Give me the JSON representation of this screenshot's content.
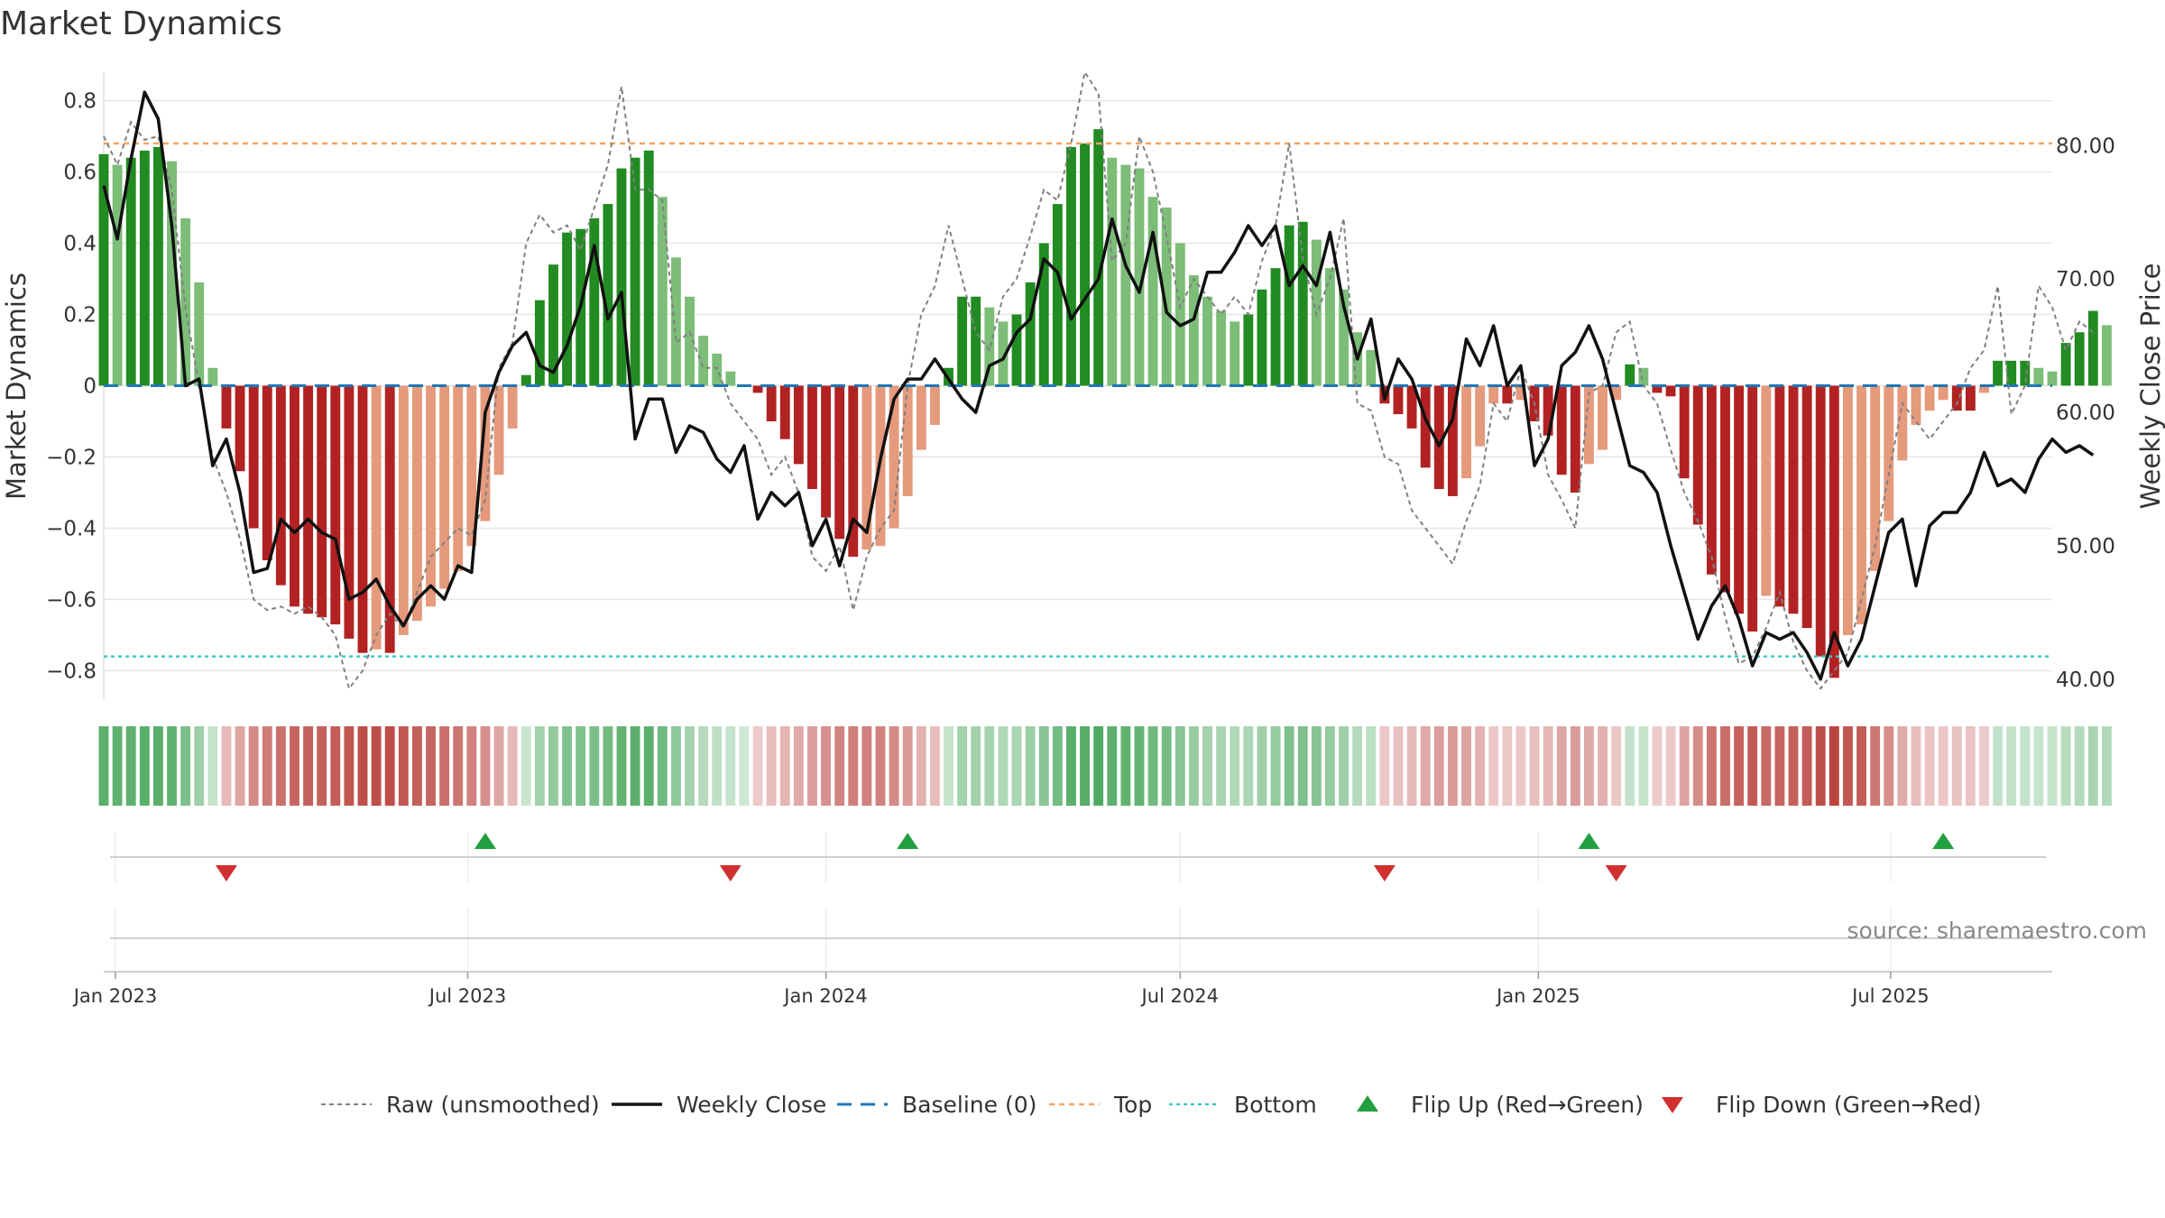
{
  "title": "Market Dynamics",
  "source": "source: sharemaestro.com",
  "colors": {
    "strong_green": "#228B22",
    "light_green": "#7CBD78",
    "strong_red": "#B22222",
    "light_red": "#E59A7C",
    "close_line": "#111111",
    "raw_line": "#808080",
    "baseline": "#1f77b4",
    "top": "#F4A460",
    "bottom": "#40C8C8",
    "flip_up": "#22A040",
    "flip_down": "#D03030",
    "grid": "#e6e6e6"
  },
  "chart_data": {
    "type": "bar",
    "title": "Market Dynamics",
    "ylabel": "Market Dynamics",
    "y2label": "Weekly Close Price",
    "ylim": [
      -0.88,
      0.88
    ],
    "y2lim": [
      38.5,
      85.5
    ],
    "yticks": [
      "0.8",
      "0.6",
      "0.4",
      "0.2",
      "0",
      "−0.2",
      "−0.4",
      "−0.6",
      "−0.8"
    ],
    "y2ticks": [
      "80.00",
      "70.00",
      "60.00",
      "50.00",
      "40.00"
    ],
    "xticks": [
      "Jan 2023",
      "Jul 2023",
      "Jan 2024",
      "Jul 2024",
      "Jan 2025",
      "Jul 2025"
    ],
    "x_start": "2022-12-26",
    "x_end": "2025-09-22",
    "week_start": "2022-12-26",
    "top_level": 0.68,
    "bottom_level": -0.76,
    "baseline_level": 0,
    "legend_position": "bottom",
    "legend": [
      "Raw (unsmoothed)",
      "Weekly Close",
      "Baseline (0)",
      "Top",
      "Bottom",
      "Flip Up (Red→Green)",
      "Flip Down (Green→Red)"
    ],
    "flip_up_dates": [
      "2023-07-10",
      "2024-02-12",
      "2025-01-27",
      "2025-07-28"
    ],
    "flip_down_dates": [
      "2023-02-27",
      "2023-11-13",
      "2024-10-14",
      "2025-02-10"
    ],
    "momentum": [
      0.65,
      0.62,
      0.64,
      0.66,
      0.67,
      0.63,
      0.47,
      0.29,
      0.05,
      -0.12,
      -0.24,
      -0.4,
      -0.49,
      -0.56,
      -0.62,
      -0.64,
      -0.65,
      -0.67,
      -0.71,
      -0.75,
      -0.74,
      -0.75,
      -0.7,
      -0.66,
      -0.62,
      -0.57,
      -0.52,
      -0.45,
      -0.38,
      -0.25,
      -0.12,
      0.03,
      0.24,
      0.34,
      0.43,
      0.44,
      0.47,
      0.51,
      0.61,
      0.64,
      0.66,
      0.53,
      0.36,
      0.25,
      0.14,
      0.09,
      0.04,
      0,
      -0.02,
      -0.1,
      -0.15,
      -0.22,
      -0.29,
      -0.37,
      -0.43,
      -0.48,
      -0.46,
      -0.45,
      -0.4,
      -0.31,
      -0.18,
      -0.11,
      0.05,
      0.25,
      0.25,
      0.22,
      0.18,
      0.2,
      0.29,
      0.4,
      0.51,
      0.67,
      0.68,
      0.72,
      0.64,
      0.62,
      0.61,
      0.53,
      0.5,
      0.4,
      0.31,
      0.25,
      0.21,
      0.18,
      0.2,
      0.27,
      0.33,
      0.45,
      0.46,
      0.41,
      0.33,
      0.27,
      0.15,
      0.1,
      -0.05,
      -0.08,
      -0.12,
      -0.23,
      -0.29,
      -0.31,
      -0.26,
      -0.17,
      -0.05,
      -0.05,
      -0.04,
      -0.1,
      -0.14,
      -0.25,
      -0.3,
      -0.22,
      -0.18,
      -0.04,
      0.06,
      0.05,
      -0.02,
      -0.03,
      -0.26,
      -0.39,
      -0.53,
      -0.58,
      -0.64,
      -0.69,
      -0.59,
      -0.62,
      -0.64,
      -0.68,
      -0.76,
      -0.82,
      -0.7,
      -0.67,
      -0.52,
      -0.38,
      -0.21,
      -0.11,
      -0.07,
      -0.04,
      -0.07,
      -0.07,
      -0.02,
      0.07,
      0.07,
      0.07,
      0.05,
      0.04,
      0.12,
      0.15,
      0.21,
      0.17
    ],
    "raw": [
      0.7,
      0.62,
      0.74,
      0.69,
      0.7,
      0.55,
      0.22,
      0.0,
      -0.2,
      -0.3,
      -0.43,
      -0.6,
      -0.63,
      -0.62,
      -0.64,
      -0.62,
      -0.65,
      -0.7,
      -0.85,
      -0.8,
      -0.7,
      -0.64,
      -0.68,
      -0.58,
      -0.48,
      -0.44,
      -0.4,
      -0.42,
      -0.32,
      0.05,
      0.12,
      0.4,
      0.48,
      0.43,
      0.45,
      0.38,
      0.5,
      0.62,
      0.84,
      0.55,
      0.55,
      0.52,
      0.12,
      0.15,
      0.05,
      0.05,
      -0.05,
      -0.1,
      -0.15,
      -0.25,
      -0.2,
      -0.3,
      -0.48,
      -0.52,
      -0.45,
      -0.63,
      -0.48,
      -0.4,
      -0.35,
      0.0,
      0.2,
      0.28,
      0.45,
      0.3,
      0.15,
      0.1,
      0.25,
      0.3,
      0.42,
      0.55,
      0.52,
      0.68,
      0.88,
      0.82,
      0.35,
      0.4,
      0.7,
      0.6,
      0.42,
      0.22,
      0.3,
      0.25,
      0.2,
      0.25,
      0.2,
      0.35,
      0.45,
      0.68,
      0.36,
      0.2,
      0.3,
      0.47,
      -0.05,
      -0.07,
      -0.2,
      -0.22,
      -0.35,
      -0.4,
      -0.45,
      -0.5,
      -0.38,
      -0.28,
      -0.05,
      -0.1,
      0.05,
      -0.05,
      -0.25,
      -0.32,
      -0.4,
      -0.02,
      0.0,
      0.15,
      0.18,
      0.0,
      -0.05,
      -0.18,
      -0.3,
      -0.38,
      -0.48,
      -0.65,
      -0.78,
      -0.76,
      -0.68,
      -0.58,
      -0.72,
      -0.8,
      -0.85,
      -0.8,
      -0.75,
      -0.6,
      -0.45,
      -0.25,
      -0.05,
      -0.1,
      -0.15,
      -0.1,
      -0.05,
      0.05,
      0.1,
      0.28,
      -0.08,
      0.0,
      0.28,
      0.22,
      0.1,
      0.18,
      0.15
    ],
    "close": [
      77,
      73,
      79,
      84,
      82,
      74,
      62,
      62.5,
      56,
      58,
      54,
      48,
      48.3,
      52,
      51,
      52,
      51,
      50.5,
      46,
      46.5,
      47.5,
      45.5,
      44,
      46,
      47,
      46,
      48.5,
      48,
      60,
      63,
      65,
      66,
      63.5,
      63,
      65,
      68,
      72.5,
      67,
      69,
      58,
      61,
      61,
      57,
      59,
      58.5,
      56.5,
      55.5,
      57.5,
      52,
      54,
      53,
      54,
      50,
      52,
      48.5,
      52,
      51,
      56.5,
      61,
      62.5,
      62.5,
      64,
      62.5,
      61,
      60,
      63.5,
      64,
      66,
      67,
      71.5,
      70.5,
      67,
      68.5,
      70,
      74.5,
      71,
      69,
      73.5,
      67.5,
      66.5,
      67,
      70.5,
      70.5,
      72,
      74,
      72.5,
      74,
      69.5,
      71,
      69.5,
      73.5,
      68,
      64,
      67,
      61,
      64,
      62.5,
      59.5,
      57.5,
      59.5,
      65.5,
      63.5,
      66.5,
      62,
      63.5,
      56,
      58,
      63.5,
      64.5,
      66.5,
      64,
      60,
      56,
      55.5,
      54,
      50,
      46.5,
      43,
      45.5,
      47,
      44.5,
      41,
      43.5,
      43,
      43.5,
      42,
      40,
      43.5,
      41,
      43,
      47,
      51,
      52,
      47,
      51.5,
      52.5,
      52.5,
      54,
      57,
      54.5,
      55,
      54,
      56.5,
      58,
      57,
      57.5,
      56.8
    ]
  }
}
